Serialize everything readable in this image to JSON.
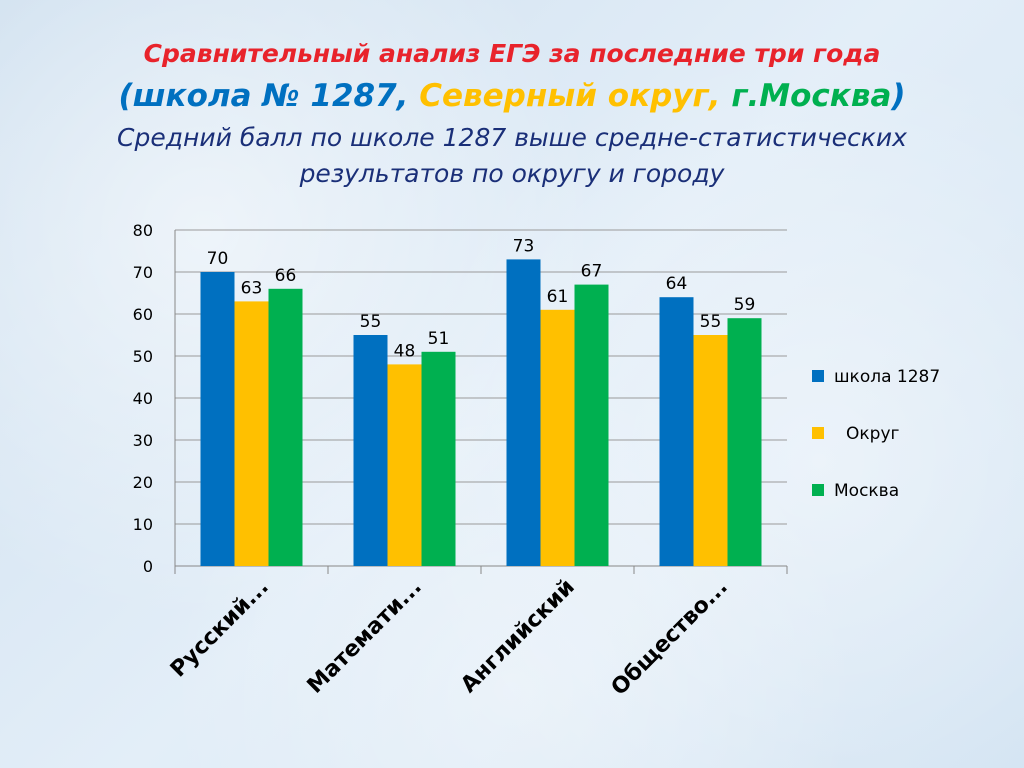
{
  "header": {
    "line1": "Сравнительный анализ ЕГЭ за последние три года",
    "line2": {
      "open": "(школа № 1287,",
      "district": "Северный округ,",
      "city": "г.Москва",
      "close": ")"
    },
    "line3a": "Средний балл по школе 1287 выше средне-статистических",
    "line3b": "результатов по округу и городу"
  },
  "colors": {
    "title_red": "#e8232b",
    "school": "#0070c0",
    "district": "#ffc000",
    "city": "#00b050",
    "dark_blue": "#1a2f78"
  },
  "chart_data": {
    "type": "bar",
    "title": "Средний балл по школе 1287 выше средне-статистических результатов по округу и городу",
    "categories": [
      "Русский...",
      "Математи...",
      "Английский",
      "Общество..."
    ],
    "series": [
      {
        "name": "школа 1287",
        "color": "#0070c0",
        "values": [
          70,
          55,
          73,
          64
        ]
      },
      {
        "name": "Округ",
        "color": "#ffc000",
        "values": [
          63,
          48,
          61,
          55
        ]
      },
      {
        "name": "Москва",
        "color": "#00b050",
        "values": [
          66,
          51,
          67,
          59
        ]
      }
    ],
    "ylim": [
      0,
      80
    ],
    "yticks": [
      0,
      10,
      20,
      30,
      40,
      50,
      60,
      70,
      80
    ],
    "grid": true,
    "legend": "right"
  }
}
